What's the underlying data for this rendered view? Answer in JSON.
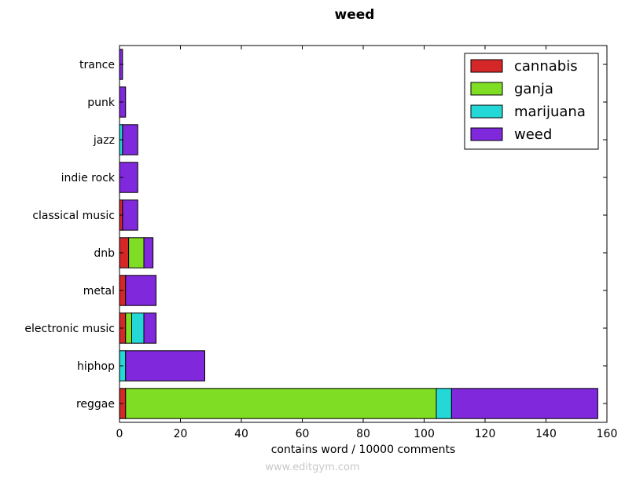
{
  "chart_data": {
    "type": "bar",
    "orientation": "horizontal",
    "stacked": true,
    "title": "weed",
    "xlabel": "contains word / 10000 comments",
    "ylabel": "",
    "xlim": [
      0,
      160
    ],
    "xticks": [
      0,
      20,
      40,
      60,
      80,
      100,
      120,
      140,
      160
    ],
    "legend_position": "top-right",
    "grid": false,
    "categories": [
      "reggae",
      "hiphop",
      "electronic music",
      "metal",
      "dnb",
      "classical music",
      "indie rock",
      "jazz",
      "punk",
      "trance"
    ],
    "series": [
      {
        "name": "cannabis",
        "color": "#d62728",
        "values": [
          2,
          0,
          2,
          2,
          3,
          1,
          0,
          0,
          0,
          0
        ]
      },
      {
        "name": "ganja",
        "color": "#7fdd23",
        "values": [
          102,
          0,
          2,
          0,
          5,
          0,
          0,
          0,
          0,
          0
        ]
      },
      {
        "name": "marijuana",
        "color": "#23d8d6",
        "values": [
          5,
          2,
          4,
          0,
          0,
          0,
          0,
          1,
          0,
          0
        ]
      },
      {
        "name": "weed",
        "color": "#8028dc",
        "values": [
          48,
          26,
          4,
          10,
          3,
          5,
          6,
          5,
          2,
          1
        ]
      }
    ]
  },
  "watermark": "www.editgym.com"
}
